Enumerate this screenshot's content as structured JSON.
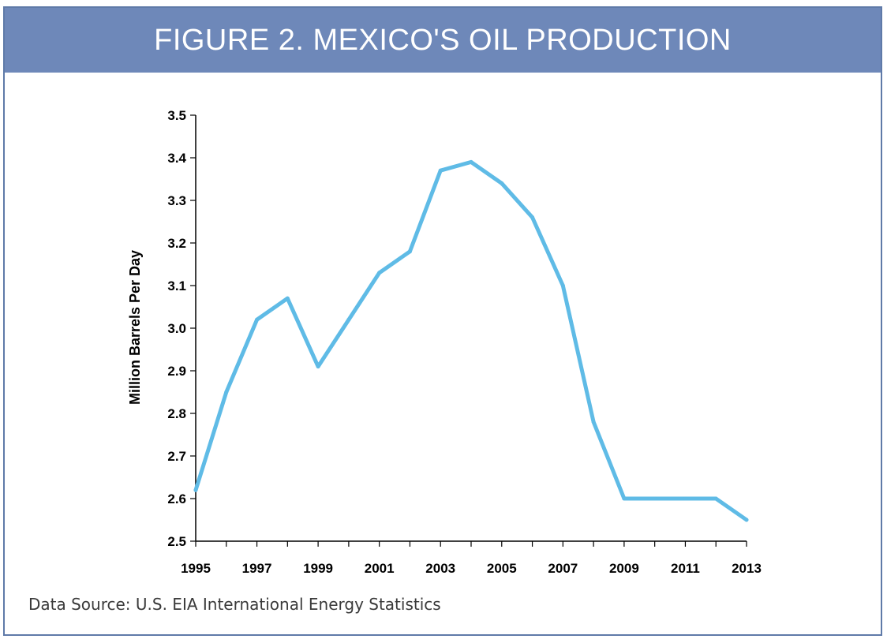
{
  "figure": {
    "title": "FIGURE 2. MEXICO'S OIL PRODUCTION",
    "source": "Data Source: U.S. EIA International Energy Statistics",
    "colors": {
      "banner": "#6e88b9",
      "line": "#5fbbe6",
      "axis": "#000000"
    }
  },
  "chart_data": {
    "type": "line",
    "title": "FIGURE 2. MEXICO'S OIL PRODUCTION",
    "xlabel": "",
    "ylabel": "Million Barrels Per Day",
    "ylim": [
      2.5,
      3.5
    ],
    "xlim": [
      1995,
      2013
    ],
    "grid": false,
    "legend": "none",
    "yticks": [
      "2.5",
      "2.6",
      "2.7",
      "2.8",
      "2.9",
      "3.0",
      "3.1",
      "3.2",
      "3.3",
      "3.4",
      "3.5"
    ],
    "xticks": [
      "1995",
      "1997",
      "1999",
      "2001",
      "2003",
      "2005",
      "2007",
      "2009",
      "2011",
      "2013"
    ],
    "series": [
      {
        "x": [
          1995,
          1996,
          1997,
          1998,
          1999,
          2000,
          2001,
          2002,
          2003,
          2004,
          2005,
          2006,
          2007,
          2008,
          2009,
          2010,
          2011,
          2012,
          2013
        ],
        "values": [
          2.62,
          2.85,
          3.02,
          3.07,
          2.91,
          3.02,
          3.13,
          3.18,
          3.37,
          3.39,
          3.34,
          3.26,
          3.1,
          2.78,
          2.6,
          2.6,
          2.6,
          2.6,
          2.55
        ]
      }
    ]
  }
}
